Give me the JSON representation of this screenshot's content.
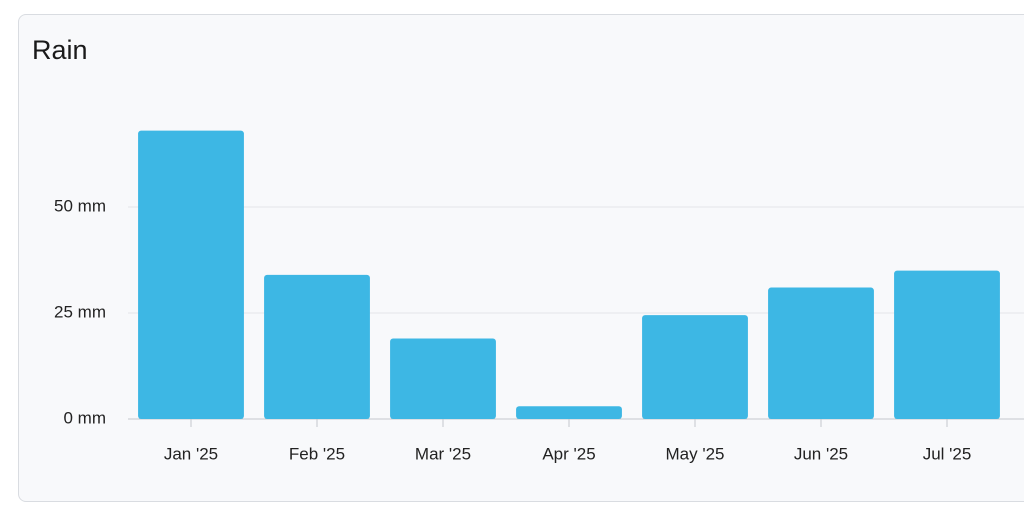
{
  "chart_data": {
    "type": "bar",
    "title": "Rain",
    "categories": [
      "Jan '25",
      "Feb '25",
      "Mar '25",
      "Apr '25",
      "May '25",
      "Jun '25",
      "Jul '25"
    ],
    "values": [
      68,
      34,
      19,
      3,
      24.5,
      31,
      35
    ],
    "color": "#3db7e4",
    "ylim": [
      0,
      75
    ],
    "yticks": [
      {
        "value": 0,
        "label": "0 mm"
      },
      {
        "value": 25,
        "label": "25 mm"
      },
      {
        "value": 50,
        "label": "50 mm"
      }
    ],
    "grid": true
  }
}
